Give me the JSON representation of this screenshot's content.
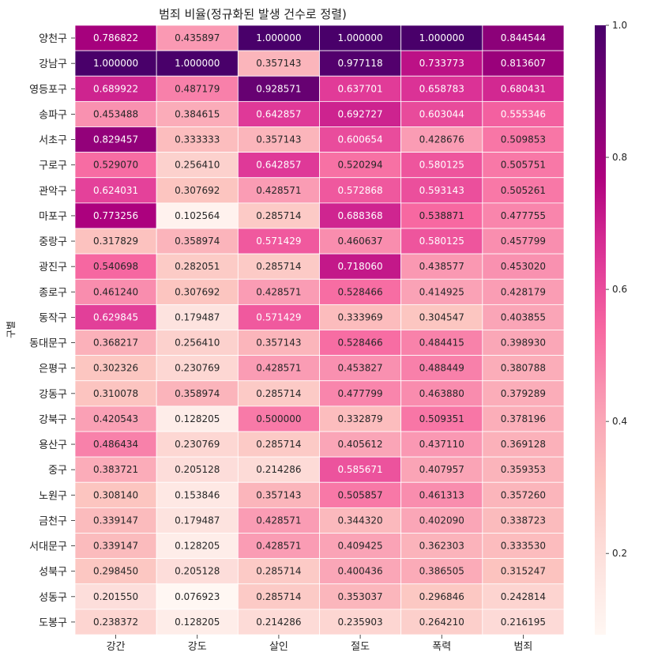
{
  "chart_data": {
    "type": "heatmap",
    "title": "범죄 비율(정규화된 발생 건수로 정렬)",
    "ylabel": "구별",
    "xlabel": "",
    "columns": [
      "강간",
      "강도",
      "살인",
      "절도",
      "폭력",
      "범죄"
    ],
    "rows": [
      "양천구",
      "강남구",
      "영등포구",
      "송파구",
      "서초구",
      "구로구",
      "관악구",
      "마포구",
      "중랑구",
      "광진구",
      "종로구",
      "동작구",
      "동대문구",
      "은평구",
      "강동구",
      "강북구",
      "용산구",
      "중구",
      "노원구",
      "금천구",
      "서대문구",
      "성북구",
      "성동구",
      "도봉구"
    ],
    "values": [
      [
        0.786822,
        0.435897,
        1.0,
        1.0,
        1.0,
        0.844544
      ],
      [
        1.0,
        1.0,
        0.357143,
        0.977118,
        0.733773,
        0.813607
      ],
      [
        0.689922,
        0.487179,
        0.928571,
        0.637701,
        0.658783,
        0.680431
      ],
      [
        0.453488,
        0.384615,
        0.642857,
        0.692727,
        0.603044,
        0.555346
      ],
      [
        0.829457,
        0.333333,
        0.357143,
        0.600654,
        0.428676,
        0.509853
      ],
      [
        0.52907,
        0.25641,
        0.642857,
        0.520294,
        0.580125,
        0.505751
      ],
      [
        0.624031,
        0.307692,
        0.428571,
        0.572868,
        0.593143,
        0.505261
      ],
      [
        0.773256,
        0.102564,
        0.285714,
        0.688368,
        0.538871,
        0.477755
      ],
      [
        0.317829,
        0.358974,
        0.571429,
        0.460637,
        0.580125,
        0.457799
      ],
      [
        0.540698,
        0.282051,
        0.285714,
        0.71806,
        0.438577,
        0.45302
      ],
      [
        0.46124,
        0.307692,
        0.428571,
        0.528466,
        0.414925,
        0.428179
      ],
      [
        0.629845,
        0.179487,
        0.571429,
        0.333969,
        0.304547,
        0.403855
      ],
      [
        0.368217,
        0.25641,
        0.357143,
        0.528466,
        0.484415,
        0.39893
      ],
      [
        0.302326,
        0.230769,
        0.428571,
        0.453827,
        0.488449,
        0.380788
      ],
      [
        0.310078,
        0.358974,
        0.285714,
        0.477799,
        0.46388,
        0.379289
      ],
      [
        0.420543,
        0.128205,
        0.5,
        0.332879,
        0.509351,
        0.378196
      ],
      [
        0.486434,
        0.230769,
        0.285714,
        0.405612,
        0.43711,
        0.369128
      ],
      [
        0.383721,
        0.205128,
        0.214286,
        0.585671,
        0.407957,
        0.359353
      ],
      [
        0.30814,
        0.153846,
        0.357143,
        0.505857,
        0.461313,
        0.35726
      ],
      [
        0.339147,
        0.179487,
        0.428571,
        0.34432,
        0.40209,
        0.338723
      ],
      [
        0.339147,
        0.128205,
        0.428571,
        0.409425,
        0.362303,
        0.33353
      ],
      [
        0.29845,
        0.205128,
        0.285714,
        0.400436,
        0.386505,
        0.315247
      ],
      [
        0.20155,
        0.076923,
        0.285714,
        0.353037,
        0.296846,
        0.242814
      ],
      [
        0.238372,
        0.128205,
        0.214286,
        0.235903,
        0.26421,
        0.216195
      ]
    ],
    "colormap": "RdPu",
    "vmin": 0.076923,
    "vmax": 1.0,
    "annotation_format": "%.6f",
    "colorbar": {
      "ticks": [
        "0.2",
        "0.4",
        "0.6",
        "0.8",
        "1.0"
      ]
    },
    "colors": {
      "cmap_stops": [
        "#fff7f3",
        "#fde0dd",
        "#fcc5c0",
        "#fa9fb5",
        "#f768a1",
        "#dd3497",
        "#ae017e",
        "#7a0177",
        "#49006a"
      ],
      "cell_border": "#ffffff",
      "text_dark": "#262626",
      "text_light": "#ffffff"
    }
  }
}
